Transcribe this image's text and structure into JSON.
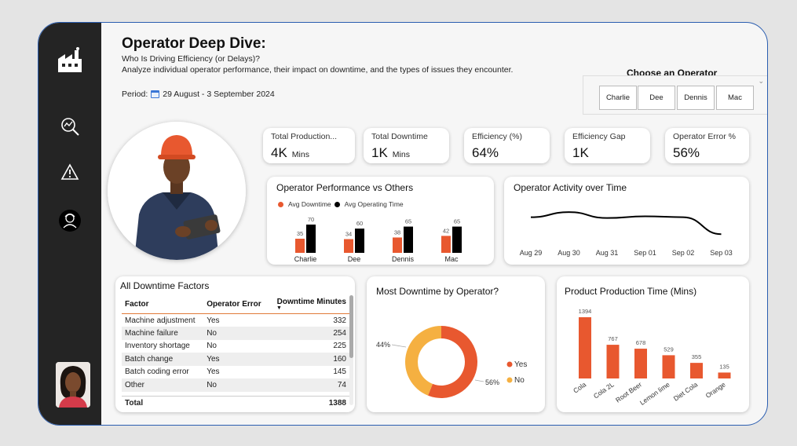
{
  "header": {
    "title": "Operator Deep Dive:",
    "subtitle": "Who Is Driving Efficiency (or Delays)?",
    "description": "Analyze individual operator performance, their impact on downtime, and the types of issues they encounter.",
    "period_label": "Period:",
    "period_value": "29 August - 3 September 2024"
  },
  "operator_picker": {
    "title": "Choose an Operator",
    "options": [
      "Charlie",
      "Dee",
      "Dennis",
      "Mac"
    ]
  },
  "sidebar": {
    "icons": [
      "factory-icon",
      "analytics-icon",
      "warning-icon",
      "operator-icon"
    ]
  },
  "kpis": [
    {
      "label": "Total Production...",
      "value": "4K",
      "unit": "Mins"
    },
    {
      "label": "Total Downtime",
      "value": "1K",
      "unit": "Mins"
    },
    {
      "label": "Efficiency (%)",
      "value": "64%",
      "unit": ""
    },
    {
      "label": "Efficiency Gap",
      "value": "1K",
      "unit": ""
    },
    {
      "label": "Operator Error %",
      "value": "56%",
      "unit": ""
    }
  ],
  "colors": {
    "accent": "#e8582f",
    "dark": "#000000",
    "yellow": "#f5b041"
  },
  "chart_data": [
    {
      "id": "performance",
      "type": "bar",
      "title": "Operator Performance vs Others",
      "categories": [
        "Charlie",
        "Dee",
        "Dennis",
        "Mac"
      ],
      "series": [
        {
          "name": "Avg Downtime",
          "values": [
            35,
            34,
            38,
            42
          ],
          "color": "#e8582f"
        },
        {
          "name": "Avg Operating Time",
          "values": [
            70,
            60,
            65,
            65
          ],
          "color": "#000000"
        }
      ]
    },
    {
      "id": "activity",
      "type": "line",
      "title": "Operator Activity over Time",
      "x": [
        "Aug 29",
        "Aug 30",
        "Aug 31",
        "Sep 01",
        "Sep 02",
        "Sep 03"
      ],
      "values": [
        60,
        72,
        58,
        62,
        60,
        20
      ]
    },
    {
      "id": "downtime_share",
      "type": "pie",
      "title": "Most Downtime by Operator?",
      "labels": [
        "Yes",
        "No"
      ],
      "values": [
        56,
        44
      ],
      "value_labels": [
        "56%",
        "44%"
      ],
      "colors": [
        "#e8582f",
        "#f5b041"
      ]
    },
    {
      "id": "product_time",
      "type": "bar",
      "title": "Product Production Time (Mins)",
      "categories": [
        "Cola",
        "Cola 2L",
        "Root Beer",
        "Lemon lime",
        "Diet Cola",
        "Orange"
      ],
      "values": [
        1394,
        767,
        678,
        529,
        355,
        135
      ]
    }
  ],
  "downtime_table": {
    "title": "All Downtime Factors",
    "columns": [
      "Factor",
      "Operator Error",
      "Downtime Minutes"
    ],
    "rows": [
      [
        "Machine adjustment",
        "Yes",
        "332"
      ],
      [
        "Machine failure",
        "No",
        "254"
      ],
      [
        "Inventory shortage",
        "No",
        "225"
      ],
      [
        "Batch change",
        "Yes",
        "160"
      ],
      [
        "Batch coding error",
        "Yes",
        "145"
      ],
      [
        "Other",
        "No",
        "74"
      ]
    ],
    "total_label": "Total",
    "total_value": "1388"
  }
}
